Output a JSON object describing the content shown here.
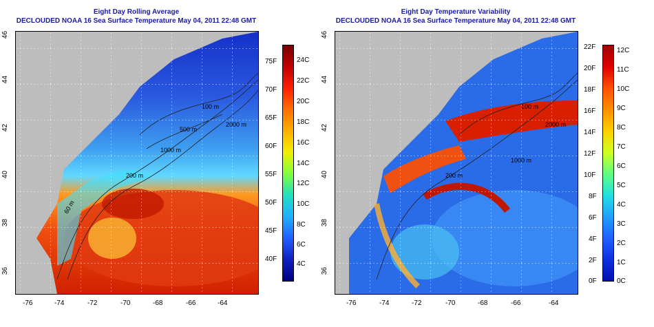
{
  "left_panel": {
    "title_line1": "Eight Day Rolling Average",
    "title_line2": "DECLOUDED NOAA 16 Sea Surface Temperature May 04, 2011 22:48 GMT",
    "x_ticks": [
      "-76",
      "-74",
      "-72",
      "-70",
      "-68",
      "-66",
      "-64"
    ],
    "y_ticks": [
      "46",
      "44",
      "42",
      "40",
      "38",
      "36"
    ],
    "contour_labels": [
      "100 m",
      "500 m",
      "1000 m",
      "2000 m",
      "200 m",
      "60 m"
    ],
    "colorbar": {
      "fahrenheit_labels": [
        "75F",
        "70F",
        "65F",
        "60F",
        "55F",
        "50F",
        "45F",
        "40F"
      ],
      "celsius_labels": [
        "24C",
        "22C",
        "20C",
        "18C",
        "16C",
        "14C",
        "12C",
        "10C",
        "8C",
        "6C",
        "4C"
      ]
    }
  },
  "right_panel": {
    "title_line1": "Eight Day Temperature Variability",
    "title_line2": "DECLOUDED NOAA 16 Sea Surface Temperature May 04, 2011 22:48 GMT",
    "x_ticks": [
      "-76",
      "-74",
      "-72",
      "-70",
      "-68",
      "-66",
      "-64"
    ],
    "y_ticks": [
      "46",
      "44",
      "42",
      "40",
      "38",
      "36"
    ],
    "contour_labels": [
      "100 m",
      "1000 m",
      "2000 m",
      "200 m"
    ],
    "colorbar": {
      "fahrenheit_labels": [
        "22F",
        "20F",
        "18F",
        "16F",
        "14F",
        "12F",
        "10F",
        "8F",
        "6F",
        "4F",
        "2F",
        "0F"
      ],
      "celsius_labels": [
        "12C",
        "11C",
        "10C",
        "9C",
        "8C",
        "7C",
        "6C",
        "5C",
        "4C",
        "3C",
        "2C",
        "1C",
        "0C"
      ]
    }
  },
  "colors": {
    "title": "#1a1aa8",
    "land": "#bdbdbd",
    "warm": "#c81e00",
    "cold": "#1e3cc8"
  }
}
